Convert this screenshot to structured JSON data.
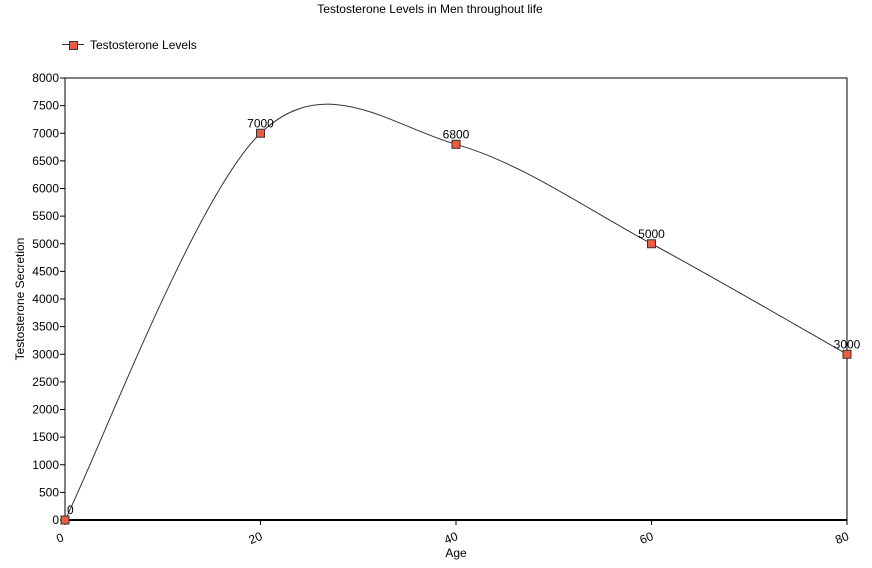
{
  "chart_data": {
    "type": "line",
    "title": "Testosterone Levels in Men throughout life",
    "xlabel": "Age",
    "ylabel": "Testosterone Secretion",
    "x": [
      0,
      20,
      40,
      60,
      80
    ],
    "series": [
      {
        "name": "Testosterone Levels",
        "values": [
          0,
          7000,
          6800,
          5000,
          3000
        ]
      }
    ],
    "data_labels": [
      "0",
      "7000",
      "6800",
      "5000",
      "3000"
    ],
    "xlim": [
      0,
      80
    ],
    "ylim": [
      0,
      8000
    ],
    "x_ticks": [
      "0",
      "20",
      "40",
      "60",
      "80"
    ],
    "y_ticks": [
      "0",
      "500",
      "1000",
      "1500",
      "2000",
      "2500",
      "3000",
      "3500",
      "4000",
      "4500",
      "5000",
      "5500",
      "6000",
      "6500",
      "7000",
      "7500",
      "8000"
    ],
    "smooth": true,
    "grid": false,
    "legend_position": "top-left",
    "colors": {
      "marker": "#f15a40",
      "line": "#333333"
    }
  }
}
